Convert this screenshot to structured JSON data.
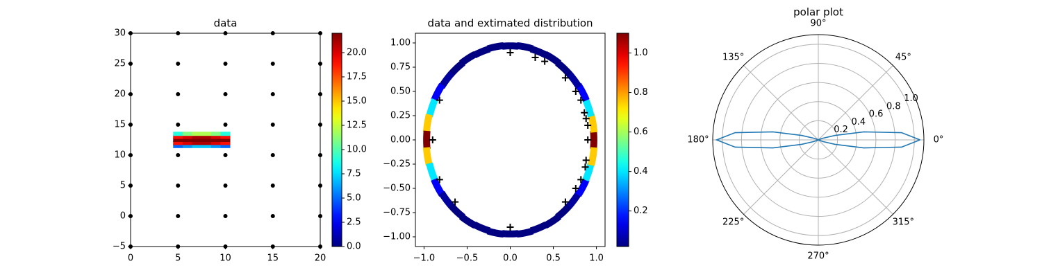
{
  "chart_data": [
    {
      "type": "scatter",
      "title": "data",
      "xlim": [
        0,
        20
      ],
      "ylim": [
        -5,
        30
      ],
      "xticks": [
        0,
        5,
        10,
        15,
        20
      ],
      "yticks": [
        {
          "value": -5,
          "label": "−5"
        },
        0,
        5,
        10,
        15,
        20,
        25,
        30
      ],
      "series": [
        {
          "marker": "dot",
          "color": "#000000",
          "x": [
            0,
            5,
            10,
            15,
            20,
            0,
            5,
            10,
            15,
            20,
            0,
            5,
            10,
            15,
            20,
            0,
            5,
            10,
            15,
            20,
            0,
            5,
            10,
            15,
            20,
            0,
            5,
            10,
            15,
            20,
            0,
            5,
            10,
            15,
            20,
            0,
            5,
            10,
            15,
            20
          ],
          "y": [
            -5,
            -5,
            -5,
            -5,
            -5,
            0,
            0,
            0,
            0,
            0,
            5,
            5,
            5,
            5,
            5,
            10,
            10,
            10,
            10,
            10,
            15,
            15,
            15,
            15,
            15,
            20,
            20,
            20,
            20,
            20,
            25,
            25,
            25,
            25,
            25,
            30,
            30,
            30,
            30,
            30
          ]
        },
        {
          "marker": "square",
          "colormap": "jet",
          "x": [
            5,
            6,
            7,
            8,
            9,
            10,
            5,
            6,
            7,
            8,
            9,
            10,
            5,
            6,
            7,
            8,
            9,
            10,
            5,
            6,
            7,
            8,
            9,
            10,
            5,
            6,
            7,
            8,
            9,
            10
          ],
          "y": [
            11.5,
            11.5,
            11.5,
            11.5,
            11.5,
            11.5,
            12,
            12,
            12,
            12,
            12,
            12,
            12.5,
            12.5,
            12.5,
            12.5,
            12.5,
            12.5,
            13,
            13,
            13,
            13,
            13,
            13,
            13.5,
            13.5,
            13.5,
            13.5,
            13.5,
            13.5
          ],
          "values": [
            5,
            6,
            7,
            7,
            6,
            5,
            19,
            20,
            21,
            21,
            20,
            19,
            22,
            22,
            22,
            22,
            22,
            22,
            19,
            20,
            21,
            21,
            20,
            19,
            9,
            11,
            12,
            12,
            11,
            9
          ]
        }
      ],
      "colorbar": {
        "colormap": "jet",
        "lim": [
          0,
          22
        ],
        "ticks": [
          {
            "value": 0,
            "label": "0.0"
          },
          2.5,
          {
            "value": 5,
            "label": "5.0"
          },
          7.5,
          {
            "value": 10,
            "label": "10.0"
          },
          12.5,
          {
            "value": 15,
            "label": "15.0"
          },
          17.5,
          {
            "value": 20,
            "label": "20.0"
          }
        ]
      }
    },
    {
      "type": "scatter",
      "title": "data and extimated distribution",
      "xlim": [
        -1.1,
        1.1
      ],
      "ylim": [
        -1.1,
        1.1
      ],
      "xticks": [
        {
          "value": -1,
          "label": "−1.0"
        },
        {
          "value": -0.5,
          "label": "−0.5"
        },
        {
          "value": 0,
          "label": "0.0"
        },
        0.5,
        {
          "value": 1,
          "label": "1.0"
        }
      ],
      "yticks": [
        {
          "value": -1,
          "label": "−1.00"
        },
        {
          "value": -0.75,
          "label": "−0.75"
        },
        {
          "value": -0.5,
          "label": "−0.50"
        },
        {
          "value": -0.25,
          "label": "−0.25"
        },
        {
          "value": 0,
          "label": "0.00"
        },
        0.25,
        {
          "value": 0.5,
          "label": "0.50"
        },
        0.75,
        {
          "value": 1,
          "label": "1.00"
        }
      ],
      "series": [
        {
          "marker": "ring",
          "colormap": "jet",
          "x": [
            0.97,
            0.96,
            0.91,
            0.84,
            0.74,
            0.62,
            0.49,
            0.33,
            0.17,
            0,
            -0.17,
            -0.33,
            -0.49,
            -0.62,
            -0.74,
            -0.84,
            -0.91,
            -0.96,
            -0.97,
            -0.96,
            -0.91,
            -0.84,
            -0.74,
            -0.62,
            -0.49,
            -0.33,
            -0.17,
            0,
            0.17,
            0.33,
            0.49,
            0.62,
            0.74,
            0.84,
            0.91,
            0.96
          ],
          "y": [
            0,
            0.17,
            0.33,
            0.49,
            0.62,
            0.74,
            0.84,
            0.91,
            0.96,
            0.97,
            0.96,
            0.91,
            0.84,
            0.74,
            0.62,
            0.49,
            0.33,
            0.17,
            0,
            -0.17,
            -0.33,
            -0.49,
            -0.62,
            -0.74,
            -0.84,
            -0.91,
            -0.96,
            -0.97,
            -0.96,
            -0.91,
            -0.84,
            -0.74,
            -0.62,
            -0.49,
            -0.33,
            -0.17
          ],
          "values": [
            1.1,
            0.75,
            0.4,
            0.15,
            0.05,
            0.02,
            0.02,
            0.02,
            0.02,
            0.02,
            0.02,
            0.02,
            0.02,
            0.02,
            0.05,
            0.15,
            0.4,
            0.75,
            1.1,
            0.75,
            0.4,
            0.15,
            0.05,
            0.02,
            0.02,
            0.02,
            0.02,
            0.02,
            0.02,
            0.02,
            0.02,
            0.02,
            0.05,
            0.15,
            0.4,
            0.75
          ]
        },
        {
          "marker": "plus",
          "color": "#000000",
          "x": [
            0,
            0.29,
            0.4,
            0.64,
            0.76,
            0.82,
            0.86,
            0.88,
            0.9,
            0.9,
            0.88,
            0.87,
            0.82,
            0.76,
            0.64,
            0,
            -0.64,
            -0.82,
            -0.9,
            -0.82
          ],
          "y": [
            0.9,
            0.85,
            0.81,
            0.64,
            0.5,
            0.41,
            0.28,
            0.22,
            0.15,
            0,
            -0.21,
            -0.28,
            -0.41,
            -0.5,
            -0.64,
            -0.9,
            -0.64,
            -0.41,
            0,
            0.41
          ]
        }
      ],
      "colorbar": {
        "colormap": "jet",
        "lim": [
          0.02,
          1.1
        ],
        "ticks": [
          0.2,
          0.4,
          0.6,
          0.8,
          {
            "value": 1,
            "label": "1.0"
          }
        ]
      }
    },
    {
      "type": "polar",
      "title": "polar plot",
      "color": "#1f77b4",
      "rlim": [
        0,
        1.1
      ],
      "rticks": [
        0.2,
        0.4,
        0.6,
        0.8,
        {
          "value": 1,
          "label": "1.0"
        }
      ],
      "thetaticks": [
        {
          "value": 0,
          "label": "0°"
        },
        {
          "value": 45,
          "label": "45°"
        },
        {
          "value": 90,
          "label": "90°"
        },
        {
          "value": 135,
          "label": "135°"
        },
        {
          "value": 180,
          "label": "180°"
        },
        {
          "value": 225,
          "label": "225°"
        },
        {
          "value": 270,
          "label": "270°"
        },
        {
          "value": 315,
          "label": "315°"
        }
      ],
      "theta": [
        0,
        5,
        10,
        15,
        20,
        25,
        30,
        60,
        90,
        120,
        150,
        155,
        160,
        165,
        170,
        175,
        180,
        185,
        190,
        195,
        200,
        205,
        210,
        240,
        270,
        300,
        330,
        335,
        340,
        345,
        350,
        355,
        360
      ],
      "r": [
        1.06,
        0.87,
        0.48,
        0.18,
        0.05,
        0.01,
        0,
        0,
        0,
        0,
        0,
        0.01,
        0.05,
        0.18,
        0.48,
        0.87,
        1.06,
        0.87,
        0.48,
        0.18,
        0.05,
        0.01,
        0,
        0,
        0,
        0,
        0,
        0.01,
        0.05,
        0.18,
        0.48,
        0.87,
        1.06
      ]
    }
  ]
}
